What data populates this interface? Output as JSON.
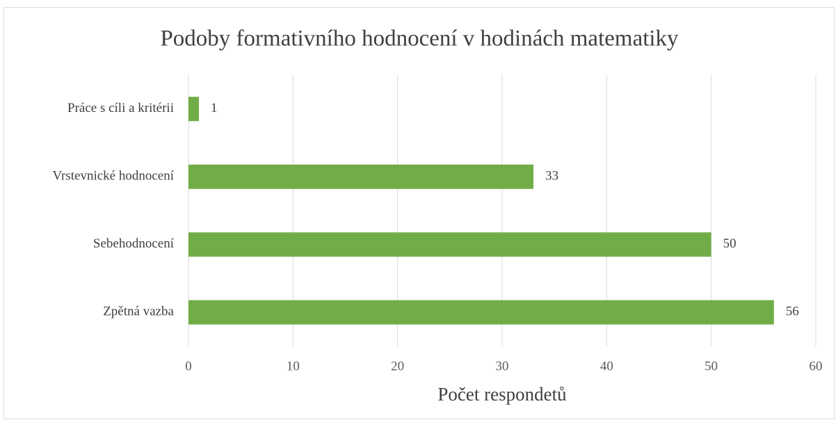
{
  "chart_data": {
    "type": "bar",
    "orientation": "horizontal",
    "title": "Podoby formativního hodnocení v hodinách matematiky",
    "x_label": "Počet respondetů",
    "categories": [
      "Práce s cíli a kritérii",
      "Vrstevnické hodnocení",
      "Sebehodnocení",
      "Zpětná vazba"
    ],
    "values": [
      1,
      33,
      50,
      56
    ],
    "color": "#70ad47",
    "xlim": [
      0,
      60
    ],
    "xticks": [
      0,
      10,
      20,
      30,
      40,
      50,
      60
    ],
    "grid": true
  }
}
